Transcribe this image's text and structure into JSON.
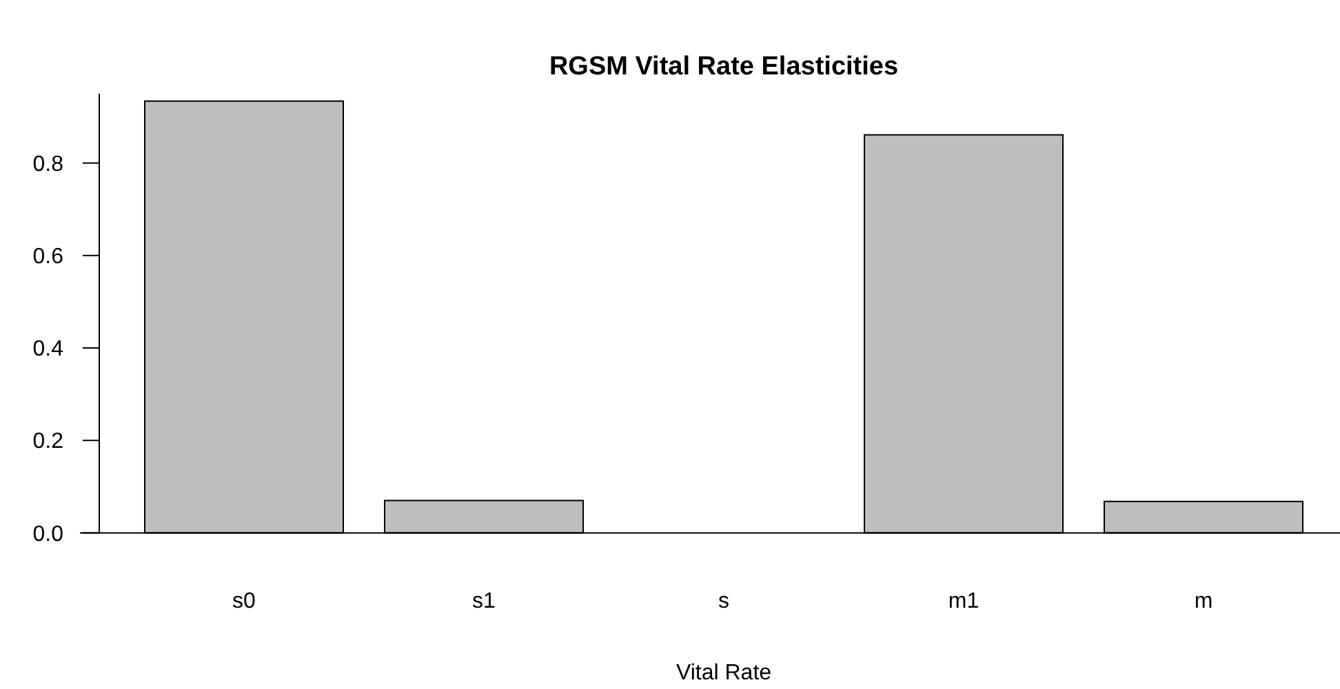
{
  "chart_data": {
    "type": "bar",
    "title": "RGSM Vital Rate Elasticities",
    "xlabel": "Vital Rate",
    "categories": [
      "s0",
      "s1",
      "s",
      "m1",
      "m"
    ],
    "values": [
      0.934,
      0.07,
      0,
      0.861,
      0.068
    ],
    "color": "#bebebe",
    "ylim": [
      0,
      0.95
    ],
    "yticks": [
      {
        "value": 0,
        "label": "0.0"
      },
      {
        "value": 0.2,
        "label": "0.2"
      },
      {
        "value": 0.4,
        "label": "0.4"
      },
      {
        "value": 0.6,
        "label": "0.6"
      },
      {
        "value": 0.8,
        "label": "0.8"
      }
    ]
  }
}
